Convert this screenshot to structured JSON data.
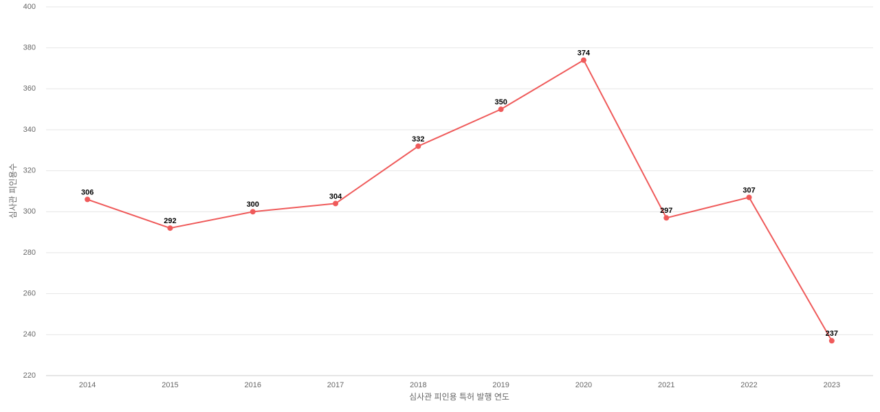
{
  "chart_data": {
    "type": "line",
    "x_label": "심사관 피인용 특허 발행 연도",
    "y_label": "심사관 피인용수",
    "categories": [
      "2014",
      "2015",
      "2016",
      "2017",
      "2018",
      "2019",
      "2020",
      "2021",
      "2022",
      "2023"
    ],
    "values": [
      306,
      292,
      300,
      304,
      332,
      350,
      374,
      297,
      307,
      237
    ],
    "color": "#ef5a5a",
    "ylim": [
      220,
      400
    ],
    "yticks": [
      220,
      240,
      260,
      280,
      300,
      320,
      340,
      360,
      380,
      400
    ],
    "grid": true
  }
}
